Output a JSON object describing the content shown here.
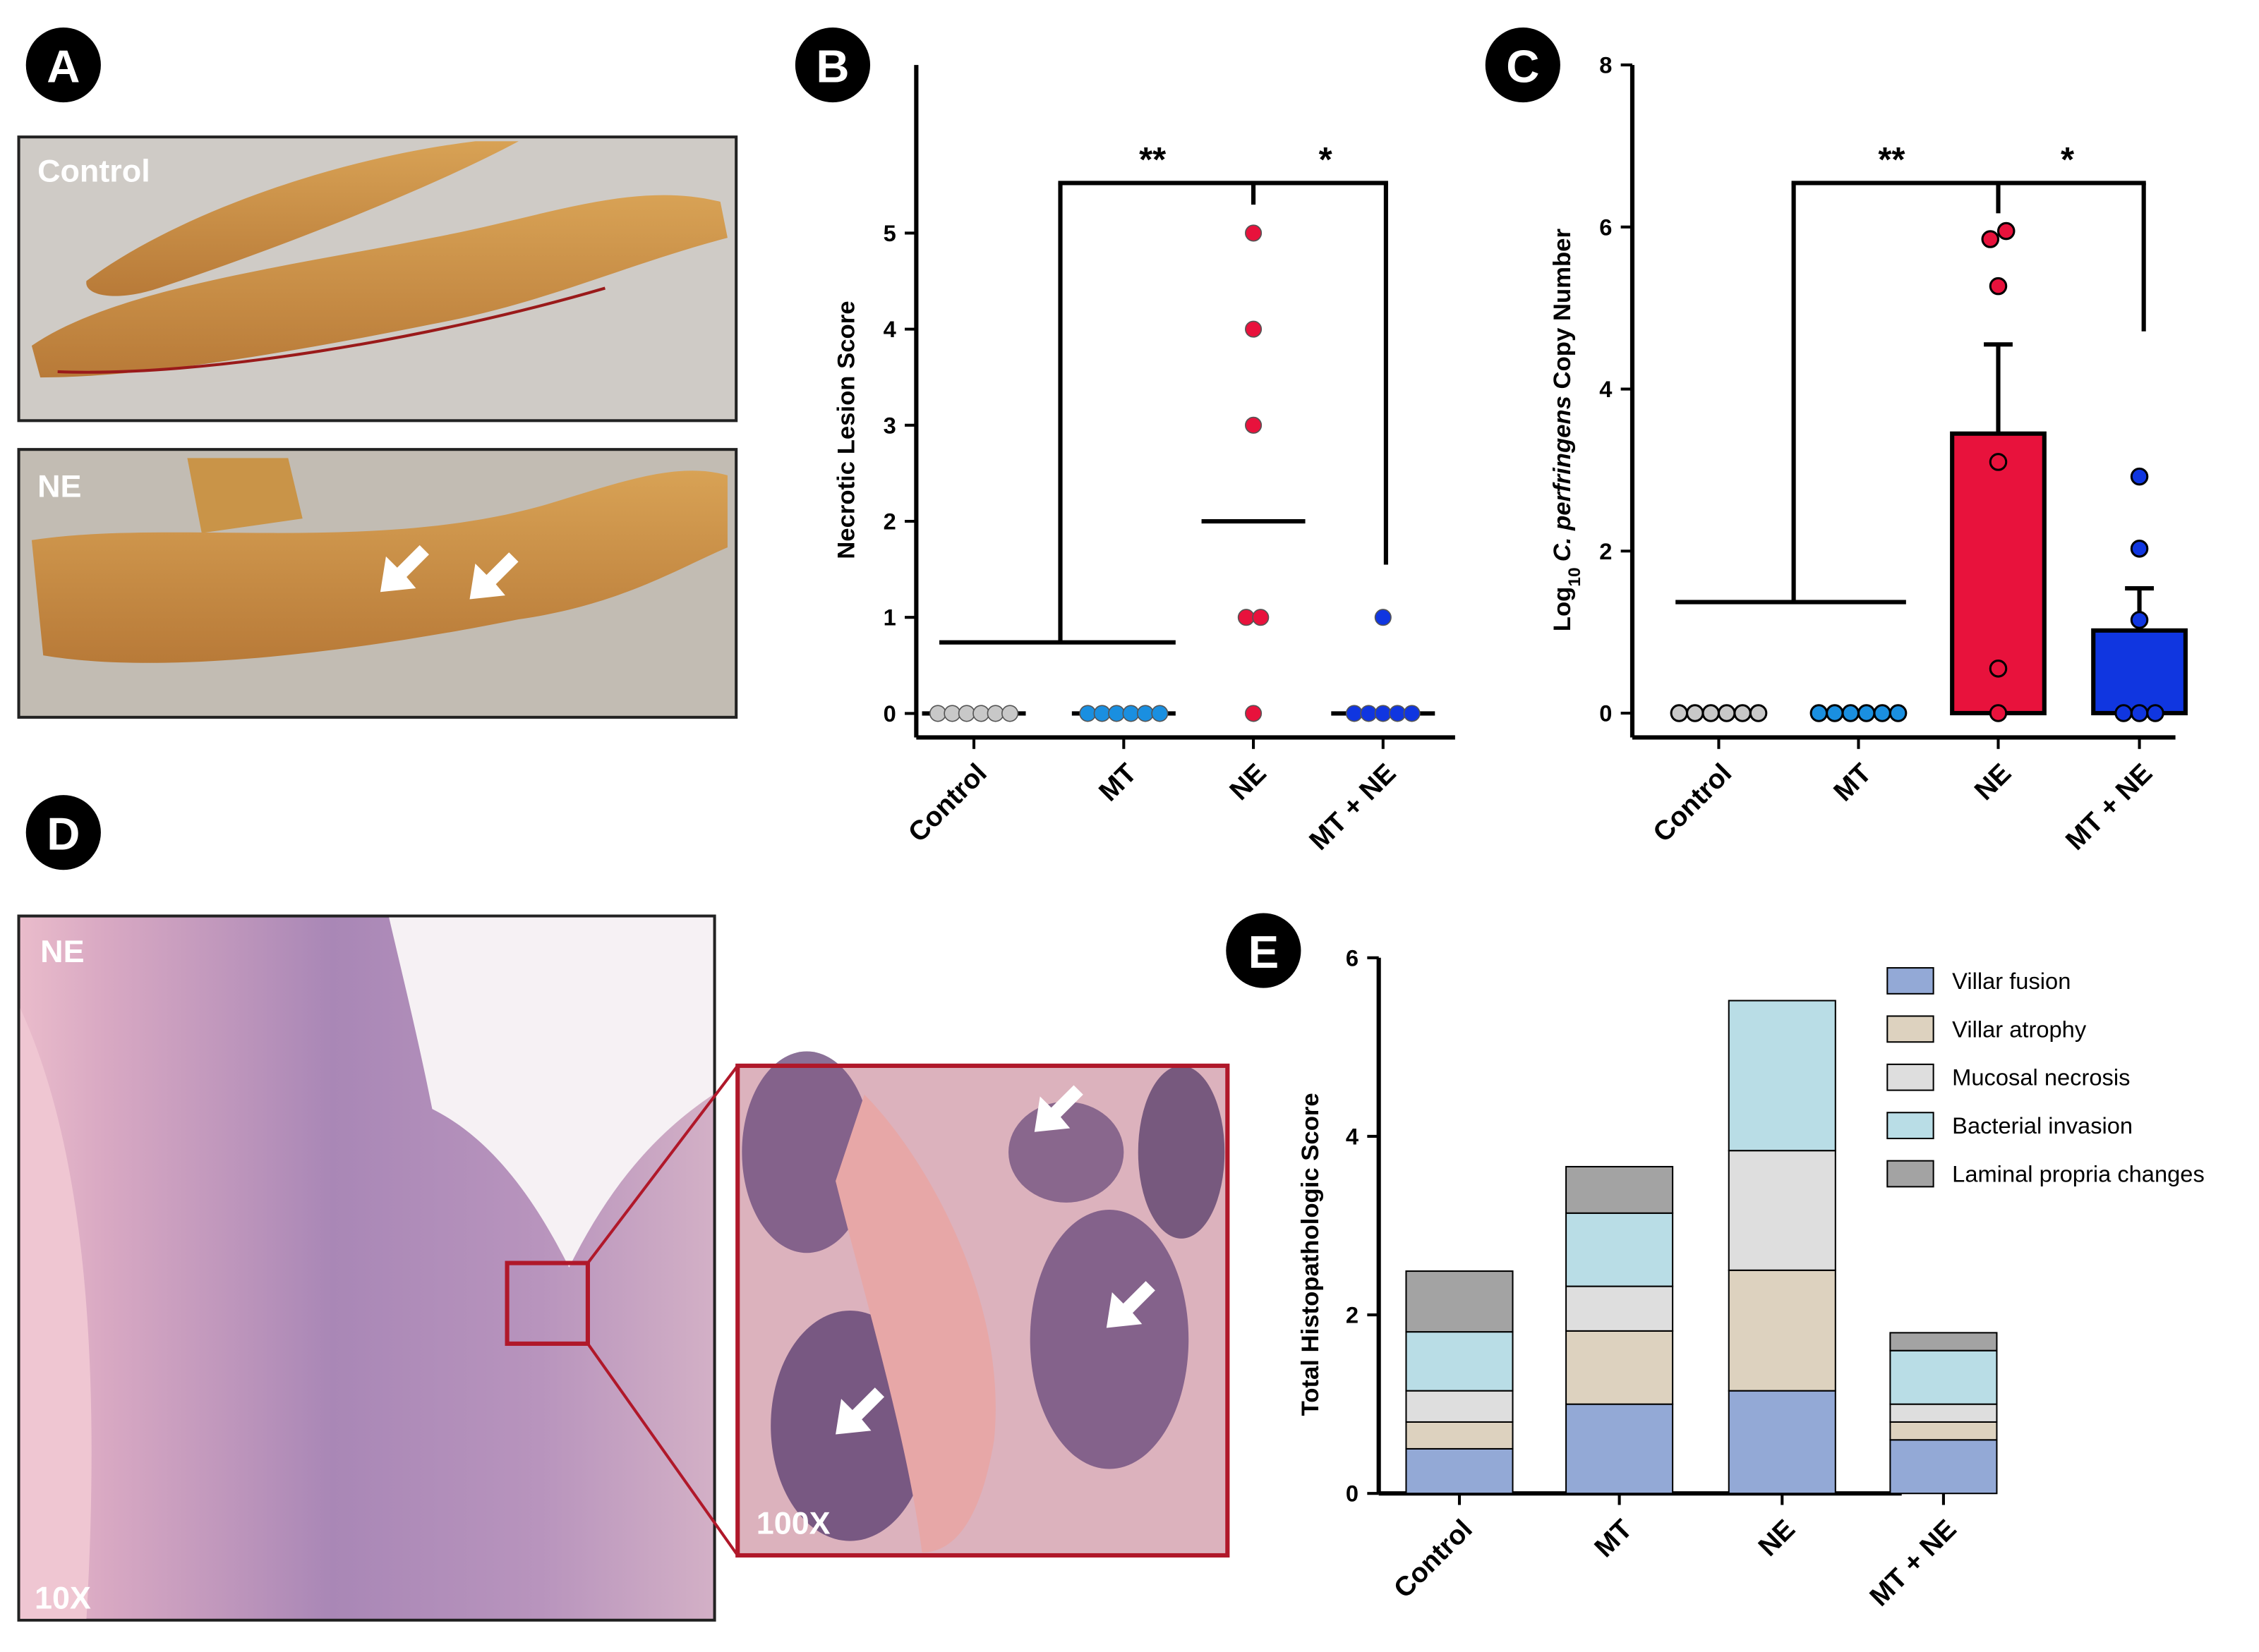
{
  "panel_labels": [
    "A",
    "B",
    "C",
    "D",
    "E"
  ],
  "photos": {
    "a_top": "Control",
    "a_bottom": "NE",
    "d_main": "NE",
    "d_main_mag": "10X",
    "d_inset_mag": "100X"
  },
  "chart_data": [
    {
      "type": "dot",
      "ylabel": "Necrotic Lesion Score",
      "categories": [
        "Control",
        "MT",
        "NE",
        "MT + NE"
      ],
      "colors": [
        "#c8c8c8",
        "#1a8fe0",
        "#e8123c",
        "#1036e0"
      ],
      "values": [
        [
          0,
          0,
          0,
          0,
          0,
          0
        ],
        [
          0,
          0,
          0,
          0,
          0,
          0
        ],
        [
          5,
          4,
          3,
          1,
          1,
          0
        ],
        [
          1,
          0,
          0,
          0,
          0,
          0
        ]
      ],
      "medians": [
        0,
        0,
        2,
        0
      ],
      "ylim": [
        -0.25,
        6.75
      ],
      "yticks": [
        0,
        1,
        2,
        3,
        4,
        5
      ],
      "significance": [
        "**",
        "*"
      ]
    },
    {
      "type": "bar_dot",
      "ylabel_parts": [
        "Log",
        "10",
        "C. perfringens",
        " Copy Number"
      ],
      "categories": [
        "Control",
        "MT",
        "NE",
        "MT + NE"
      ],
      "colors": [
        "#c8c8c8",
        "#1a8fe0",
        "#e8123c",
        "#1036e0"
      ],
      "values": [
        0,
        0,
        3.45,
        1.02
      ],
      "errors": [
        null,
        null,
        1.1,
        0.52
      ],
      "points": [
        [
          0,
          0,
          0,
          0,
          0,
          0
        ],
        [
          0,
          0,
          0,
          0,
          0,
          0
        ],
        [
          5.85,
          5.95,
          5.27,
          3.1,
          0.55,
          0
        ],
        [
          2.92,
          2.03,
          1.15,
          0,
          0,
          0
        ]
      ],
      "ylim": [
        -0.3,
        8
      ],
      "yticks": [
        0,
        2,
        4,
        6,
        8
      ],
      "significance": [
        "**",
        "*"
      ]
    },
    {
      "type": "stacked_bar",
      "ylabel": "Total Histopathologic Score",
      "categories": [
        "Control",
        "MT",
        "NE",
        "MT + NE"
      ],
      "series": [
        {
          "name": "Villar fusion",
          "color": "#93a9d6",
          "values": [
            0.5,
            1.0,
            1.15,
            0.6
          ]
        },
        {
          "name": "Villar atrophy",
          "color": "#ddd2bf",
          "values": [
            0.3,
            0.82,
            1.35,
            0.2
          ]
        },
        {
          "name": "Mucosal necrosis",
          "color": "#dedede",
          "values": [
            0.35,
            0.5,
            1.34,
            0.2
          ]
        },
        {
          "name": "Bacterial invasion",
          "color": "#b9dde6",
          "values": [
            0.66,
            0.82,
            1.68,
            0.6
          ]
        },
        {
          "name": "Laminal propria changes",
          "color": "#a3a3a3",
          "values": [
            0.68,
            0.52,
            0,
            0.2
          ]
        }
      ],
      "ylim": [
        0,
        6
      ],
      "yticks": [
        0,
        2,
        4,
        6
      ]
    }
  ]
}
